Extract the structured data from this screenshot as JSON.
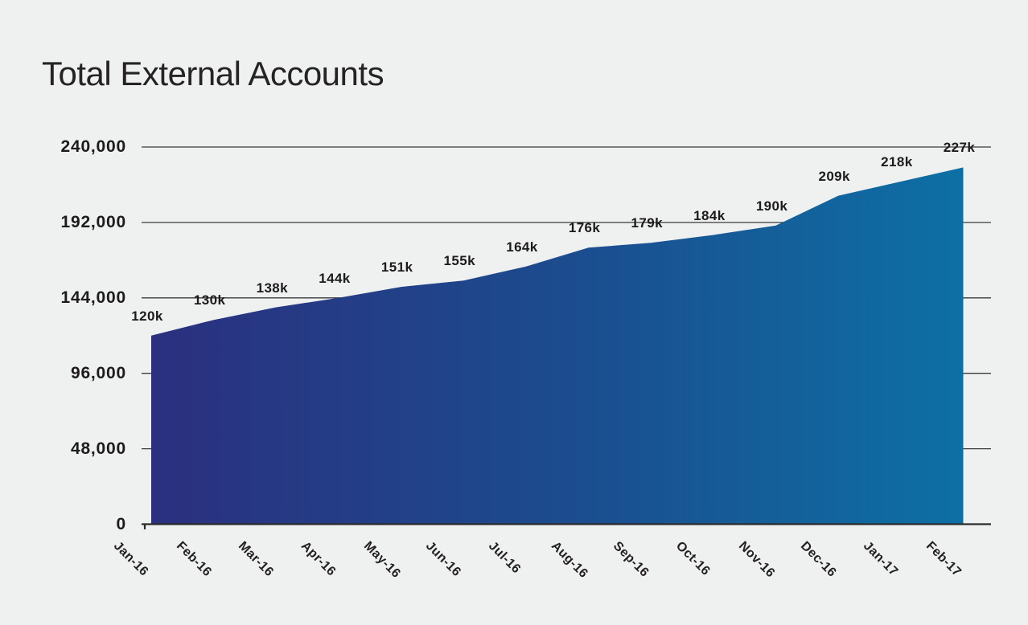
{
  "page": {
    "background": "#eff1f1"
  },
  "chart_data": {
    "type": "area",
    "title": "Total External Accounts",
    "categories": [
      "Jan-16",
      "Feb-16",
      "Mar-16",
      "Apr-16",
      "May-16",
      "Jun-16",
      "Jul-16",
      "Aug-16",
      "Sep-16",
      "Oct-16",
      "Nov-16",
      "Dec-16",
      "Jan-17",
      "Feb-17"
    ],
    "values": [
      120000,
      130000,
      138000,
      144000,
      151000,
      155000,
      164000,
      176000,
      179000,
      184000,
      190000,
      209000,
      218000,
      227000
    ],
    "point_labels": [
      "120k",
      "130k",
      "138k",
      "144k",
      "151k",
      "155k",
      "164k",
      "176k",
      "179k",
      "184k",
      "190k",
      "209k",
      "218k",
      "227k"
    ],
    "xlabel": "",
    "ylabel": "",
    "ylim": [
      0,
      240000
    ],
    "y_axis_ticks": [
      {
        "value": 0,
        "label": "0"
      },
      {
        "value": 48000,
        "label": "48,000"
      },
      {
        "value": 96000,
        "label": "96,000"
      },
      {
        "value": 144000,
        "label": "144,000"
      },
      {
        "value": 192000,
        "label": "192,000"
      },
      {
        "value": 240000,
        "label": "240,000"
      }
    ],
    "grid": true,
    "legend": "none",
    "colors": {
      "gradient_start": "#2b307f",
      "gradient_mid": "#1c4b8e",
      "gradient_end": "#0d70a5",
      "grid_line": "#3a3a3a",
      "axis_line": "#2b2b2b",
      "label_text": "#1d1b1c",
      "title_text": "#262324",
      "background": "#eff1f1"
    }
  }
}
